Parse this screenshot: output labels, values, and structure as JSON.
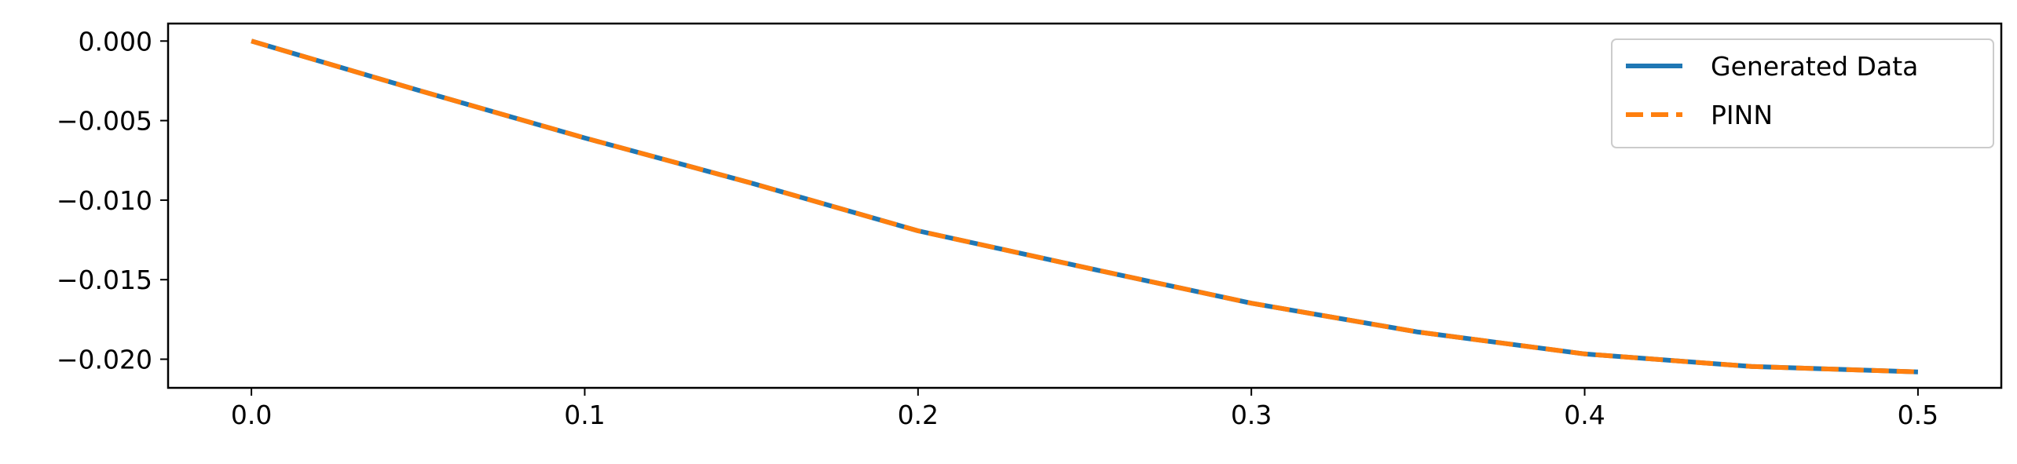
{
  "chart_data": {
    "type": "line",
    "title": "",
    "xlabel": "",
    "ylabel": "",
    "xlim": [
      -0.025,
      0.525
    ],
    "ylim": [
      -0.0218,
      0.0011
    ],
    "xticks": [
      0.0,
      0.1,
      0.2,
      0.3,
      0.4,
      0.5
    ],
    "xtick_labels": [
      "0.0",
      "0.1",
      "0.2",
      "0.3",
      "0.4",
      "0.5"
    ],
    "yticks": [
      0.0,
      -0.005,
      -0.01,
      -0.015,
      -0.02
    ],
    "ytick_labels": [
      "0.000",
      "−0.005",
      "−0.010",
      "−0.015",
      "−0.020"
    ],
    "grid": false,
    "legend_position": "top-right",
    "x": [
      0.0,
      0.05,
      0.1,
      0.15,
      0.2,
      0.25,
      0.3,
      0.35,
      0.4,
      0.45,
      0.5
    ],
    "series": [
      {
        "name": "Generated Data",
        "color": "#1f77b4",
        "style": "solid",
        "values": [
          0.0,
          -0.00309,
          -0.00609,
          -0.00893,
          -0.01193,
          -0.01423,
          -0.01648,
          -0.01829,
          -0.01967,
          -0.02046,
          -0.0208
        ]
      },
      {
        "name": "PINN",
        "color": "#ff7f0e",
        "style": "dashed",
        "values": [
          0.0,
          -0.00309,
          -0.00609,
          -0.00893,
          -0.01193,
          -0.01423,
          -0.01648,
          -0.01829,
          -0.01967,
          -0.02046,
          -0.0208
        ]
      }
    ]
  }
}
